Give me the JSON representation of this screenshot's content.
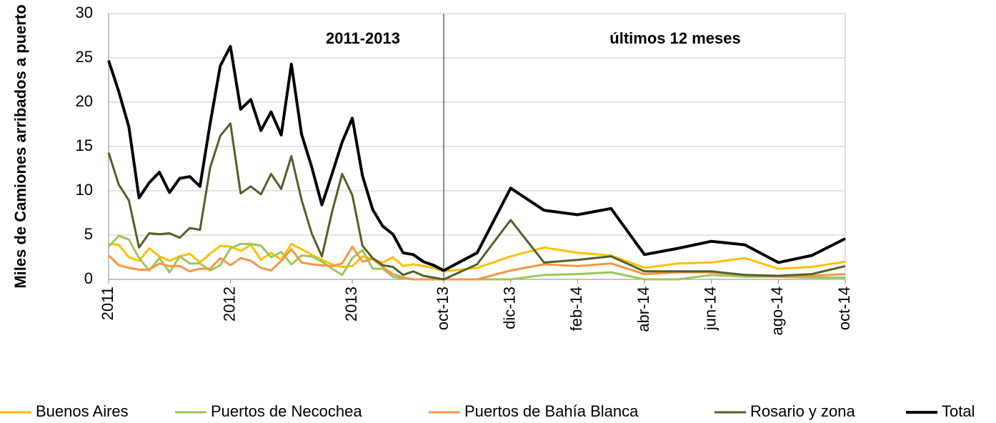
{
  "chart_data": {
    "type": "line",
    "ylabel": "Miles de Camiones arribados a puerto",
    "categories": [
      "2011",
      null,
      null,
      null,
      null,
      null,
      null,
      null,
      null,
      null,
      null,
      null,
      "2012",
      null,
      null,
      null,
      null,
      null,
      null,
      null,
      null,
      null,
      null,
      null,
      "2013",
      null,
      null,
      null,
      null,
      null,
      null,
      null,
      null,
      "oct-13",
      null,
      "dic-13",
      null,
      "feb-14",
      null,
      "abr-14",
      null,
      "jun-14",
      null,
      "ago-14",
      null,
      "oct-14"
    ],
    "panels": [
      {
        "title": "2011-2013",
        "start": 0,
        "end": 33
      },
      {
        "title": "últimos 12 meses",
        "start": 33,
        "end": 45
      }
    ],
    "ylim": [
      0,
      30
    ],
    "yticks": [
      0,
      5,
      10,
      15,
      20,
      25,
      30
    ],
    "grid": true,
    "series": [
      {
        "name": "Buenos Aires",
        "color": "#ffc000",
        "values": [
          4.0,
          3.9,
          2.5,
          2.1,
          3.5,
          2.6,
          2.1,
          2.6,
          2.9,
          1.9,
          2.9,
          3.8,
          3.7,
          3.2,
          3.9,
          2.2,
          3.0,
          2.2,
          4.0,
          3.4,
          2.8,
          2.2,
          1.7,
          1.4,
          1.5,
          2.6,
          2.3,
          1.9,
          2.5,
          1.5,
          1.7,
          1.5,
          1.3,
          0.9,
          1.3,
          2.6,
          3.6,
          3.0,
          2.7,
          1.3,
          1.8,
          1.9,
          2.4,
          1.2,
          1.4,
          2.0
        ]
      },
      {
        "name": "Puertos de Necochea",
        "color": "#9bc75a",
        "values": [
          3.7,
          4.9,
          4.5,
          2.4,
          1.0,
          2.4,
          0.8,
          2.6,
          1.8,
          1.8,
          1.0,
          1.6,
          3.5,
          4.0,
          4.0,
          3.8,
          2.5,
          3.1,
          1.7,
          2.7,
          2.6,
          2.0,
          1.2,
          0.5,
          2.4,
          3.3,
          1.2,
          1.2,
          0.3,
          0.1,
          0.0,
          0.0,
          0.0,
          0.0,
          0.0,
          0.0,
          0.5,
          0.6,
          0.8,
          0.0,
          0.0,
          0.5,
          0.3,
          0.3,
          0.2,
          0.2
        ]
      },
      {
        "name": "Puertos de Bahía Blanca",
        "color": "#f79646",
        "values": [
          2.7,
          1.6,
          1.3,
          1.1,
          1.1,
          1.8,
          1.5,
          1.5,
          0.9,
          1.2,
          1.2,
          2.4,
          1.6,
          2.4,
          2.1,
          1.3,
          1.0,
          2.1,
          3.4,
          1.9,
          1.7,
          1.6,
          1.5,
          1.8,
          3.7,
          2.0,
          2.3,
          1.4,
          0.6,
          0.2,
          0.0,
          0.0,
          0.0,
          0.0,
          0.0,
          1.0,
          1.7,
          1.5,
          1.8,
          0.6,
          0.8,
          0.8,
          0.5,
          0.3,
          0.4,
          0.6
        ]
      },
      {
        "name": "Rosario y zona",
        "color": "#4f6228",
        "values": [
          14.3,
          10.7,
          8.9,
          3.6,
          5.2,
          5.1,
          5.2,
          4.7,
          5.8,
          5.6,
          12.6,
          16.2,
          17.6,
          9.7,
          10.5,
          9.6,
          11.9,
          10.2,
          13.9,
          9.0,
          5.2,
          2.6,
          7.6,
          11.9,
          9.5,
          3.8,
          2.4,
          1.6,
          1.4,
          0.5,
          0.9,
          0.4,
          0.2,
          0.0,
          1.7,
          6.7,
          1.9,
          2.2,
          2.6,
          0.9,
          0.9,
          0.9,
          0.5,
          0.4,
          0.6,
          1.5
        ]
      },
      {
        "name": "Total",
        "color": "#000000",
        "values": [
          24.7,
          21.2,
          17.2,
          9.2,
          10.9,
          12.1,
          9.8,
          11.4,
          11.6,
          10.5,
          17.6,
          24.1,
          26.3,
          19.2,
          20.3,
          16.8,
          18.9,
          16.3,
          24.3,
          16.4,
          12.7,
          8.4,
          11.9,
          15.5,
          18.2,
          11.7,
          7.9,
          6.0,
          5.1,
          3.0,
          2.8,
          2.0,
          1.6,
          1.0,
          3.0,
          10.3,
          7.8,
          7.3,
          8.0,
          2.8,
          3.5,
          4.3,
          3.9,
          1.9,
          2.7,
          4.6
        ]
      }
    ]
  }
}
